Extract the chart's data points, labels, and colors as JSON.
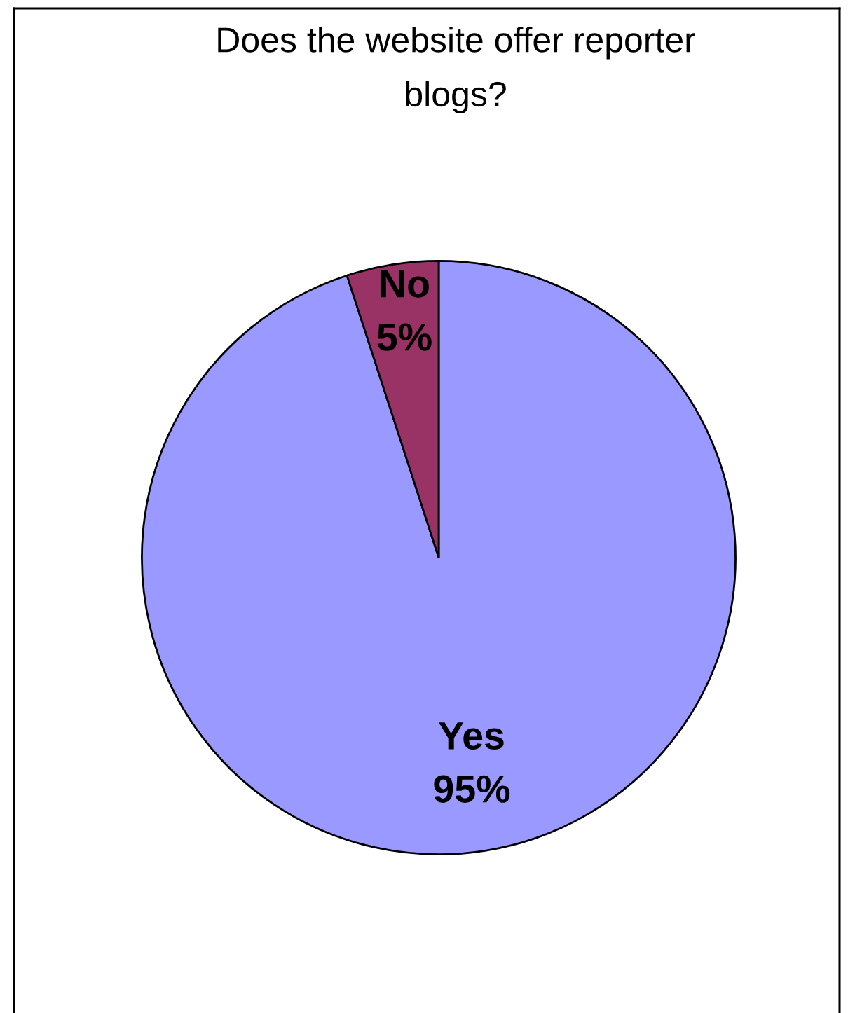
{
  "chart_data": {
    "type": "pie",
    "title": "Does the website offer reporter blogs?",
    "categories": [
      "Yes",
      "No"
    ],
    "values": [
      95,
      5
    ],
    "colors": [
      "#9999ff",
      "#993366"
    ],
    "value_labels": [
      "95%",
      "5%"
    ]
  }
}
